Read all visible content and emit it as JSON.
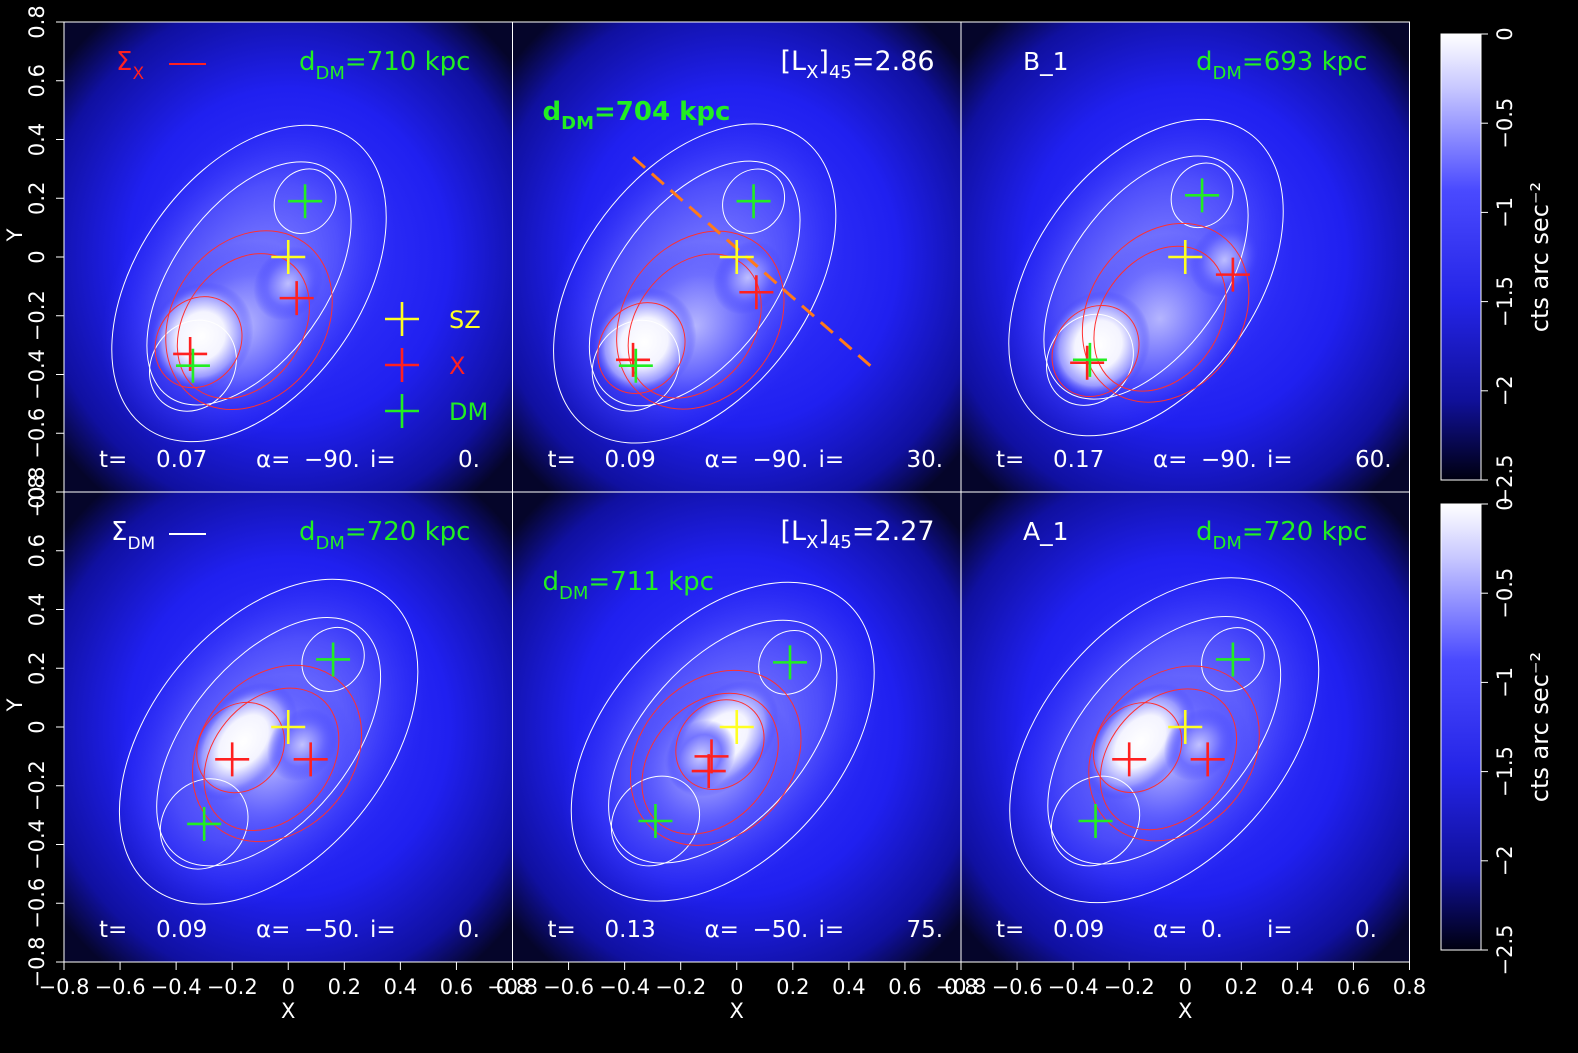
{
  "figure": {
    "x_axis_label": "X",
    "y_axis_label": "Y",
    "colorbar_label": "cts arc sec⁻²",
    "colorbar_ticks": [
      "0",
      "−0.5",
      "−1",
      "−1.5",
      "−2",
      "−2.5"
    ],
    "legend": [
      {
        "symbol": "plus",
        "label": "SZ",
        "color": "#ffff22"
      },
      {
        "symbol": "plus",
        "label": "X",
        "color": "#ff2020"
      },
      {
        "symbol": "plus",
        "label": "DM",
        "color": "#22ee22"
      }
    ],
    "contour_legend": {
      "sx": "Σ",
      "sx_sub": "X",
      "sdm": "Σ",
      "sdm_sub": "DM"
    }
  },
  "colors": {
    "background": "#000000",
    "sz": "#ffff22",
    "x": "#ff2020",
    "dm": "#22ee22",
    "contour_dm": "#ffffff",
    "contour_x": "#ff3030",
    "axis_line": "#ff7a1a"
  },
  "chart_data": {
    "type": "heatmap",
    "xlim": [
      -0.8,
      0.8
    ],
    "ylim": [
      -0.8,
      0.8
    ],
    "x_ticks": [
      "−0.8",
      "−0.6",
      "−0.4",
      "−0.2",
      "0",
      "0.2",
      "0.4",
      "0.6",
      "0.8"
    ],
    "y_ticks": [
      "−0.8",
      "−0.6",
      "−0.4",
      "−0.2",
      "0",
      "0.2",
      "0.4",
      "0.6",
      "0.8"
    ],
    "colorbar_range": [
      -2.5,
      0
    ],
    "panels": [
      {
        "id": "p1",
        "row": 0,
        "col": 0,
        "dm_label": "710 kpc",
        "label": "",
        "lx": "",
        "t": "0.07",
        "alpha": "−90.",
        "i": "0.",
        "sz": [
          [
            0.0,
            0.0
          ]
        ],
        "x": [
          [
            -0.35,
            -0.33
          ],
          [
            0.03,
            -0.14
          ]
        ],
        "dm": [
          [
            -0.34,
            -0.37
          ],
          [
            0.06,
            0.19
          ]
        ]
      },
      {
        "id": "p2",
        "row": 0,
        "col": 1,
        "dm_label": "704 kpc",
        "label": "",
        "lx": "2.86",
        "t": "0.09",
        "alpha": "−90.",
        "i": "30.",
        "sz": [
          [
            0.0,
            0.0
          ]
        ],
        "x": [
          [
            -0.37,
            -0.35
          ],
          [
            0.07,
            -0.12
          ]
        ],
        "dm": [
          [
            -0.36,
            -0.37
          ],
          [
            0.06,
            0.19
          ]
        ]
      },
      {
        "id": "p3",
        "row": 0,
        "col": 2,
        "dm_label": "693 kpc",
        "label": "B_1",
        "lx": "",
        "t": "0.17",
        "alpha": "−90.",
        "i": "60.",
        "sz": [
          [
            0.0,
            0.0
          ]
        ],
        "x": [
          [
            -0.35,
            -0.36
          ],
          [
            0.17,
            -0.06
          ]
        ],
        "dm": [
          [
            -0.34,
            -0.35
          ],
          [
            0.06,
            0.21
          ]
        ]
      },
      {
        "id": "p4",
        "row": 1,
        "col": 0,
        "dm_label": "720 kpc",
        "label": "",
        "lx": "",
        "t": "0.09",
        "alpha": "−50.",
        "i": "0.",
        "sz": [
          [
            0.0,
            0.0
          ]
        ],
        "x": [
          [
            -0.2,
            -0.11
          ],
          [
            0.08,
            -0.11
          ]
        ],
        "dm": [
          [
            -0.3,
            -0.33
          ],
          [
            0.16,
            0.23
          ]
        ]
      },
      {
        "id": "p5",
        "row": 1,
        "col": 1,
        "dm_label": "711 kpc",
        "label": "",
        "lx": "2.27",
        "t": "0.13",
        "alpha": "−50.",
        "i": "75.",
        "sz": [
          [
            0.0,
            0.0
          ]
        ],
        "x": [
          [
            -0.09,
            -0.1
          ],
          [
            -0.1,
            -0.15
          ]
        ],
        "dm": [
          [
            -0.29,
            -0.32
          ],
          [
            0.19,
            0.22
          ]
        ]
      },
      {
        "id": "p6",
        "row": 1,
        "col": 2,
        "dm_label": "720 kpc",
        "label": "A_1",
        "lx": "",
        "t": "0.09",
        "alpha": "0.",
        "i": "0.",
        "sz": [
          [
            0.0,
            0.0
          ]
        ],
        "x": [
          [
            -0.2,
            -0.11
          ],
          [
            0.08,
            -0.11
          ]
        ],
        "dm": [
          [
            -0.32,
            -0.32
          ],
          [
            0.17,
            0.23
          ]
        ]
      }
    ]
  }
}
